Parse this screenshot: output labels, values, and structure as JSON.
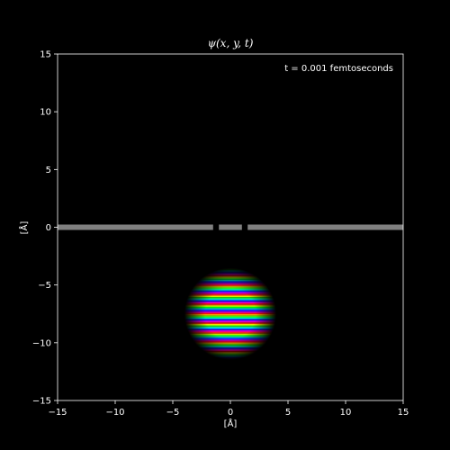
{
  "chart_data": {
    "type": "heatmap",
    "title": "ψ(x, y, t)",
    "annotation": "t = 0.001 femtoseconds",
    "xlabel": "[Å]",
    "ylabel": "[Å]",
    "xlim": [
      -15,
      15
    ],
    "ylim": [
      -15,
      15
    ],
    "xticks": [
      -15,
      -10,
      -5,
      0,
      5,
      10,
      15
    ],
    "yticks": [
      -15,
      -10,
      -5,
      0,
      5,
      10,
      15
    ],
    "xtick_labels": [
      "−15",
      "−10",
      "−5",
      "0",
      "5",
      "10",
      "15"
    ],
    "ytick_labels": [
      "−15",
      "−10",
      "−5",
      "0",
      "5",
      "10",
      "15"
    ],
    "grid": false,
    "background": "#000000",
    "barrier": {
      "y": 0,
      "color": "#808080",
      "segments": [
        [
          -15,
          -1.5
        ],
        [
          -1.0,
          1.0
        ],
        [
          1.5,
          15
        ]
      ]
    },
    "wavepacket": {
      "center": [
        0,
        -7.5
      ],
      "radius": 3.8,
      "stripe_period": 0.82,
      "colormap": "phase (hue)"
    }
  }
}
